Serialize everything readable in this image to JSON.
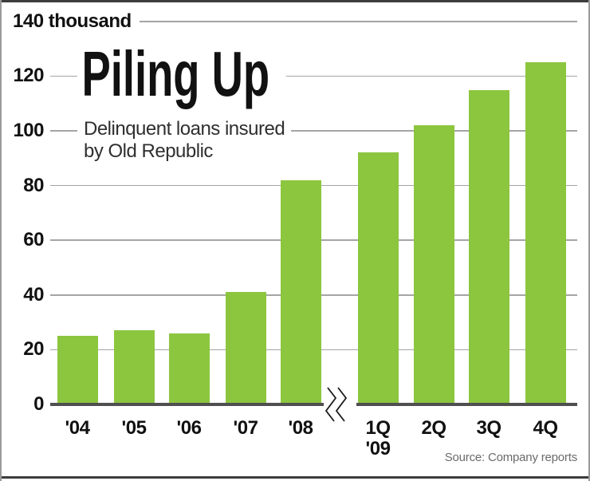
{
  "chart_data": {
    "type": "bar",
    "title": "Piling Up",
    "subtitle": "Delinquent loans insured\nby Old Republic",
    "source": "Source: Company reports",
    "categories": [
      "'04",
      "'05",
      "'06",
      "'07",
      "'08",
      "1Q\n'09",
      "2Q",
      "3Q",
      "4Q"
    ],
    "values": [
      25,
      27,
      26,
      41,
      82,
      92,
      102,
      115,
      125
    ],
    "ylim": [
      0,
      140
    ],
    "yticks": [
      {
        "value": 0,
        "label": "0"
      },
      {
        "value": 20,
        "label": "20"
      },
      {
        "value": 40,
        "label": "40"
      },
      {
        "value": 60,
        "label": "60"
      },
      {
        "value": 80,
        "label": "80"
      },
      {
        "value": 100,
        "label": "100"
      },
      {
        "value": 120,
        "label": "120"
      },
      {
        "value": 140,
        "label": "140 thousand"
      }
    ],
    "xlabel": "",
    "ylabel": "",
    "grid": true,
    "legend": "none",
    "axis_break": {
      "between": [
        "'08",
        "1Q '09"
      ]
    },
    "colors": {
      "bar": "#8cc63f",
      "grid": "#a5a5a5",
      "axis": "#4f4f4f",
      "text": "#111111",
      "subtitle_text": "#2f2f2f",
      "source_text": "#6b6b6b",
      "frame_dark": "#3d3d3d",
      "frame_light": "#9a9a9a"
    }
  }
}
